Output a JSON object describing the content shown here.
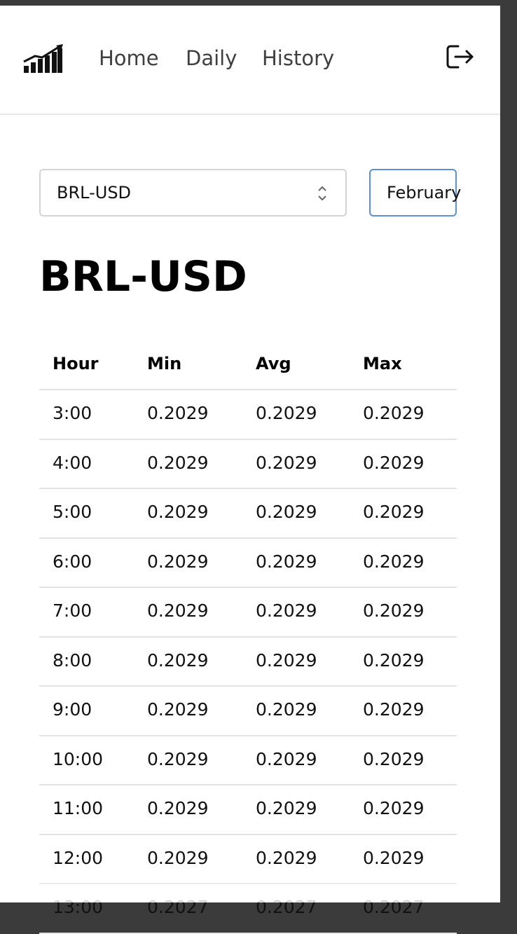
{
  "nav": {
    "links": [
      "Home",
      "Daily",
      "History"
    ]
  },
  "controls": {
    "pair": "BRL-USD",
    "date": "February"
  },
  "heading": "BRL-USD",
  "table": {
    "headers": [
      "Hour",
      "Min",
      "Avg",
      "Max"
    ],
    "rows": [
      [
        "3:00",
        "0.2029",
        "0.2029",
        "0.2029"
      ],
      [
        "4:00",
        "0.2029",
        "0.2029",
        "0.2029"
      ],
      [
        "5:00",
        "0.2029",
        "0.2029",
        "0.2029"
      ],
      [
        "6:00",
        "0.2029",
        "0.2029",
        "0.2029"
      ],
      [
        "7:00",
        "0.2029",
        "0.2029",
        "0.2029"
      ],
      [
        "8:00",
        "0.2029",
        "0.2029",
        "0.2029"
      ],
      [
        "9:00",
        "0.2029",
        "0.2029",
        "0.2029"
      ],
      [
        "10:00",
        "0.2029",
        "0.2029",
        "0.2029"
      ],
      [
        "11:00",
        "0.2029",
        "0.2029",
        "0.2029"
      ],
      [
        "12:00",
        "0.2029",
        "0.2029",
        "0.2029"
      ],
      [
        "13:00",
        "0.2027",
        "0.2027",
        "0.2027"
      ]
    ]
  }
}
